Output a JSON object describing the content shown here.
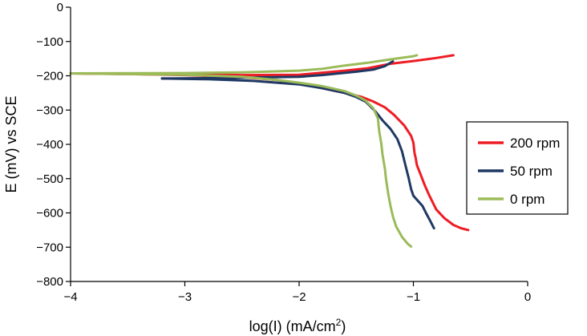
{
  "chart_data": {
    "type": "line",
    "xlabel": "log(I) (mA/cm",
    "xlabel_sup": "2",
    "xlabel_close": ")",
    "ylabel": "E (mV) vs SCE",
    "xlim": [
      -4,
      0
    ],
    "ylim": [
      -800,
      0
    ],
    "x_ticks": [
      -4,
      -3,
      -2,
      -1,
      0
    ],
    "y_ticks": [
      0,
      -100,
      -200,
      -300,
      -400,
      -500,
      -600,
      -700,
      -800
    ],
    "x_tick_labels": [
      "−4",
      "−3",
      "−2",
      "−1",
      "0"
    ],
    "y_tick_labels": [
      "0",
      "−100",
      "−200",
      "−300",
      "−400",
      "−500",
      "−600",
      "−700",
      "−800"
    ],
    "grid": false,
    "legend_position": "right",
    "series": [
      {
        "name": "200 rpm",
        "color": "#ee1c24",
        "cathodic": [
          [
            -4.0,
            -193
          ],
          [
            -3.5,
            -195
          ],
          [
            -3.0,
            -198
          ],
          [
            -2.5,
            -204
          ],
          [
            -2.2,
            -212
          ],
          [
            -2.0,
            -222
          ],
          [
            -1.8,
            -236
          ],
          [
            -1.6,
            -250
          ],
          [
            -1.45,
            -262
          ],
          [
            -1.35,
            -275
          ],
          [
            -1.25,
            -292
          ],
          [
            -1.17,
            -314
          ],
          [
            -1.08,
            -345
          ],
          [
            -1.02,
            -375
          ],
          [
            -1.0,
            -395
          ],
          [
            -0.99,
            -425
          ],
          [
            -0.98,
            -440
          ],
          [
            -0.97,
            -460
          ],
          [
            -0.94,
            -485
          ],
          [
            -0.9,
            -520
          ],
          [
            -0.86,
            -550
          ],
          [
            -0.8,
            -590
          ],
          [
            -0.73,
            -615
          ],
          [
            -0.65,
            -635
          ],
          [
            -0.58,
            -645
          ],
          [
            -0.52,
            -650
          ]
        ],
        "anodic": [
          [
            -4.0,
            -193
          ],
          [
            -3.0,
            -195
          ],
          [
            -2.5,
            -198
          ],
          [
            -2.0,
            -197
          ],
          [
            -1.6,
            -185
          ],
          [
            -1.4,
            -178
          ],
          [
            -1.2,
            -165
          ],
          [
            -1.0,
            -157
          ],
          [
            -0.8,
            -148
          ],
          [
            -0.65,
            -140
          ]
        ]
      },
      {
        "name": "50 rpm",
        "color": "#1f3864",
        "cathodic": [
          [
            -3.2,
            -208
          ],
          [
            -2.8,
            -210
          ],
          [
            -2.4,
            -215
          ],
          [
            -2.0,
            -225
          ],
          [
            -1.8,
            -236
          ],
          [
            -1.6,
            -250
          ],
          [
            -1.5,
            -262
          ],
          [
            -1.42,
            -275
          ],
          [
            -1.38,
            -288
          ],
          [
            -1.33,
            -305
          ],
          [
            -1.27,
            -330
          ],
          [
            -1.2,
            -355
          ],
          [
            -1.14,
            -385
          ],
          [
            -1.1,
            -420
          ],
          [
            -1.07,
            -460
          ],
          [
            -1.04,
            -500
          ],
          [
            -1.02,
            -530
          ],
          [
            -1.0,
            -550
          ],
          [
            -0.96,
            -565
          ],
          [
            -0.92,
            -580
          ],
          [
            -0.89,
            -600
          ],
          [
            -0.85,
            -625
          ],
          [
            -0.82,
            -645
          ]
        ],
        "anodic": [
          [
            -3.2,
            -208
          ],
          [
            -2.8,
            -207
          ],
          [
            -2.4,
            -205
          ],
          [
            -2.0,
            -203
          ],
          [
            -1.8,
            -198
          ],
          [
            -1.5,
            -188
          ],
          [
            -1.35,
            -182
          ],
          [
            -1.25,
            -172
          ],
          [
            -1.18,
            -158
          ]
        ]
      },
      {
        "name": "0 rpm",
        "color": "#9bbb59",
        "cathodic": [
          [
            -4.0,
            -193
          ],
          [
            -3.5,
            -195
          ],
          [
            -3.0,
            -197
          ],
          [
            -2.5,
            -203
          ],
          [
            -2.2,
            -212
          ],
          [
            -2.0,
            -220
          ],
          [
            -1.8,
            -230
          ],
          [
            -1.6,
            -245
          ],
          [
            -1.5,
            -258
          ],
          [
            -1.42,
            -272
          ],
          [
            -1.35,
            -295
          ],
          [
            -1.31,
            -325
          ],
          [
            -1.3,
            -360
          ],
          [
            -1.28,
            -400
          ],
          [
            -1.27,
            -430
          ],
          [
            -1.25,
            -470
          ],
          [
            -1.24,
            -500
          ],
          [
            -1.22,
            -545
          ],
          [
            -1.2,
            -580
          ],
          [
            -1.18,
            -610
          ],
          [
            -1.15,
            -640
          ],
          [
            -1.1,
            -670
          ],
          [
            -1.05,
            -690
          ],
          [
            -1.02,
            -698
          ]
        ],
        "anodic": [
          [
            -4.0,
            -193
          ],
          [
            -3.0,
            -192
          ],
          [
            -2.5,
            -190
          ],
          [
            -2.0,
            -185
          ],
          [
            -1.8,
            -180
          ],
          [
            -1.6,
            -170
          ],
          [
            -1.4,
            -162
          ],
          [
            -1.2,
            -152
          ],
          [
            -1.0,
            -143
          ],
          [
            -0.97,
            -140
          ]
        ]
      }
    ]
  }
}
